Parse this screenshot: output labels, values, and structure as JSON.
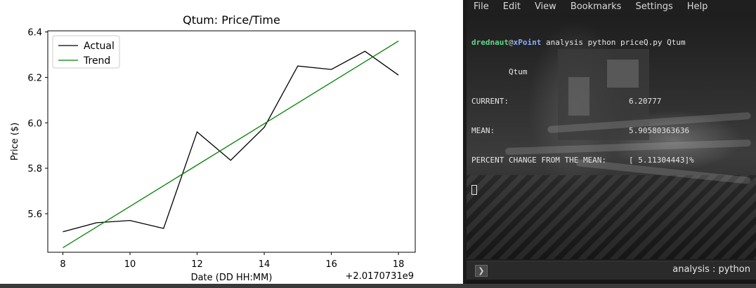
{
  "chart_data": {
    "type": "line",
    "title": "Qtum: Price/Time",
    "xlabel": "Date (DD HH:MM)",
    "ylabel": "Price ($)",
    "x_offset_label": "+2.0170731e9",
    "xlim": [
      7.55,
      18.5
    ],
    "ylim": [
      5.43,
      6.405
    ],
    "x_ticks": [
      8,
      10,
      12,
      14,
      16,
      18
    ],
    "y_ticks": [
      5.6,
      5.8,
      6.0,
      6.2,
      6.4
    ],
    "x_tick_labels": [
      "8",
      "10",
      "12",
      "14",
      "16",
      "18"
    ],
    "y_tick_labels": [
      "5.6",
      "5.8",
      "6.0",
      "6.2",
      "6.4"
    ],
    "legend_position": "upper-left",
    "grid": false,
    "series": [
      {
        "name": "Actual",
        "color": "#000000",
        "x": [
          8,
          9,
          10,
          11,
          12,
          13,
          14,
          15,
          16,
          17,
          18
        ],
        "y": [
          5.52,
          5.56,
          5.57,
          5.535,
          5.96,
          5.835,
          5.98,
          6.25,
          6.235,
          6.315,
          6.21
        ]
      },
      {
        "name": "Trend",
        "color": "#008000",
        "x": [
          8,
          18
        ],
        "y": [
          5.45,
          6.36
        ]
      }
    ]
  },
  "terminal": {
    "menu": [
      "File",
      "Edit",
      "View",
      "Bookmarks",
      "Settings",
      "Help"
    ],
    "prompt_user": "drednaut",
    "prompt_at": "@",
    "prompt_host": "xPoint",
    "prompt_cmd": " analysis python priceQ.py Qtum",
    "output_line_2": "        Qtum",
    "rows": [
      {
        "key": "CURRENT:",
        "value": "6.20777"
      },
      {
        "key": "MEAN:",
        "value": "5.90580363636"
      },
      {
        "key": "PERCENT CHANGE FROM THE MEAN:",
        "value": "[ 5.11304443]%"
      }
    ],
    "tab_button_glyph": "❯",
    "session_name": "analysis : python"
  }
}
